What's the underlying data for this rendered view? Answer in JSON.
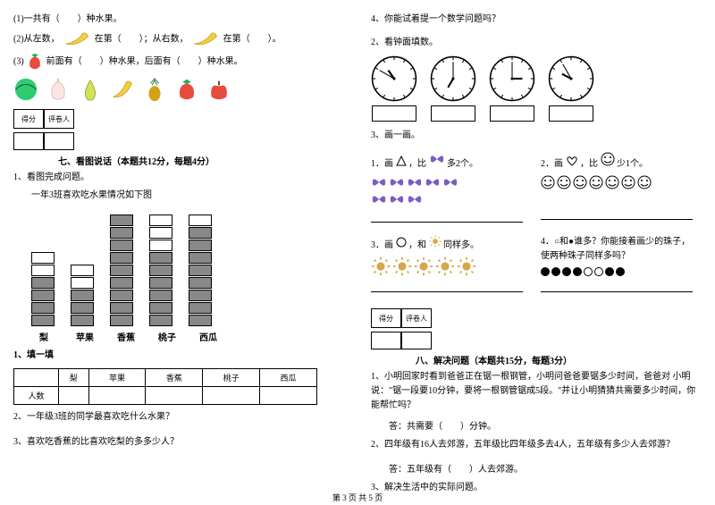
{
  "left": {
    "q1": "(1)一共有（　　）种水果。",
    "q2a": "(2)从左数，",
    "q2b": "在第（　　）；从右数，",
    "q2c": "在第（　　）。",
    "q3a": "(3)",
    "q3b": "前面有（　　）种水果，后面有（　　）种水果。",
    "score_label1": "得分",
    "score_label2": "评卷人",
    "section7": "七、看图说话（本题共12分，每题4分）",
    "chart_intro1": "1、看图完成问题。",
    "chart_intro2": "一年3班喜欢吃水果情况如下图",
    "fruits": [
      "梨",
      "苹果",
      "香蕉",
      "桃子",
      "西瓜"
    ],
    "bars": [
      4,
      3,
      9,
      6,
      8
    ],
    "fill_title": "1、填一填",
    "table_row_label": "人数",
    "q_sub2": "2、一年级3班的同学最喜欢吃什么水果？",
    "q_sub3": "3、喜欢吃香蕉的比喜欢吃梨的多多少人？"
  },
  "right": {
    "q4": "4、你能试着提一个数学问题吗？",
    "q_clock": "2、看钟面填数。",
    "clocks": [
      {
        "hour": 10,
        "min": 50
      },
      {
        "hour": 7,
        "min": 0
      },
      {
        "hour": 3,
        "min": 0
      },
      {
        "hour": 9,
        "min": 55
      }
    ],
    "q_draw": "3、画一画。",
    "draw1a": "1．画",
    "draw1b": "，比",
    "draw1c": "多2个。",
    "draw2a": "2．画",
    "draw2b": "，比",
    "draw2c": "少1个。",
    "draw3a": "3．画",
    "draw3b": "，和",
    "draw3c": "同样多。",
    "draw4": "4．○和●谁多？你能接着画少的珠子，使两种珠子同样多吗？",
    "score_label1": "得分",
    "score_label2": "评卷人",
    "section8": "八、解决问题（本题共15分，每题3分）",
    "p1": "1、小明回家时看到爸爸正在锯一根钢管，小明问爸爸要锯多少时间，爸爸对 小明说：\"锯一段要10分钟，要将一根钢管锯成5段。\"并让小明猜猜共需要多少时间，你能帮忙吗？",
    "a1": "答：共需要（　　）分钟。",
    "p2": "2、四年级有16人去郊游，五年级比四年级多去4人，五年级有多少人去郊游？",
    "a2": "答：五年级有（　　）人去郊游。",
    "p3": "3、解决生活中的实际问题。"
  },
  "footer": "第 3 页 共 5 页",
  "colors": {
    "bar_fill": "#888888",
    "butterfly": "#7b5cc4",
    "sun": "#d4a84a"
  }
}
